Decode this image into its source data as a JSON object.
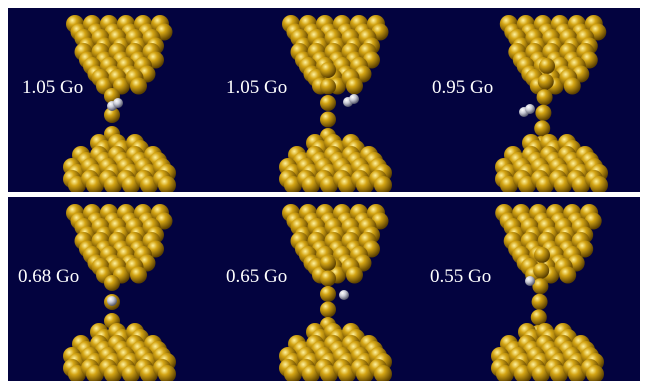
{
  "panels": [
    {
      "conductance": "1.05 Go",
      "colors": {
        "atom": "#d4a514",
        "hydrogen": "#c9cbd6"
      }
    },
    {
      "conductance": "1.05 Go"
    },
    {
      "conductance": "0.95 Go"
    },
    {
      "conductance": "0.68 Go"
    },
    {
      "conductance": "0.65 Go"
    },
    {
      "conductance": "0.55 Go"
    }
  ]
}
